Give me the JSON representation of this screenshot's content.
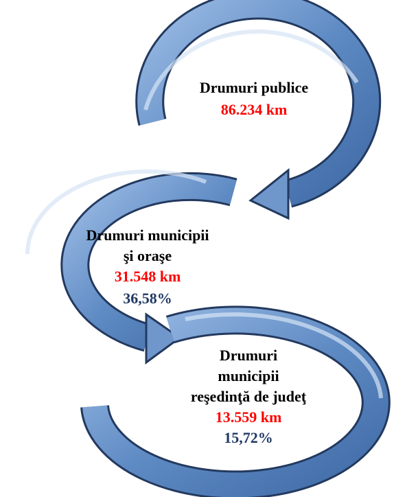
{
  "nodes": [
    {
      "label": [
        "Drumuri publice"
      ],
      "km": "86.234 km"
    },
    {
      "label": [
        "Drumuri municipii",
        "şi oraşe"
      ],
      "km": "31.548 km",
      "share": "36,58%"
    },
    {
      "label": [
        "Drumuri",
        "municipii",
        "reşedinţă de judeţ"
      ],
      "km": "13.559 km",
      "share": "15,72%"
    }
  ]
}
